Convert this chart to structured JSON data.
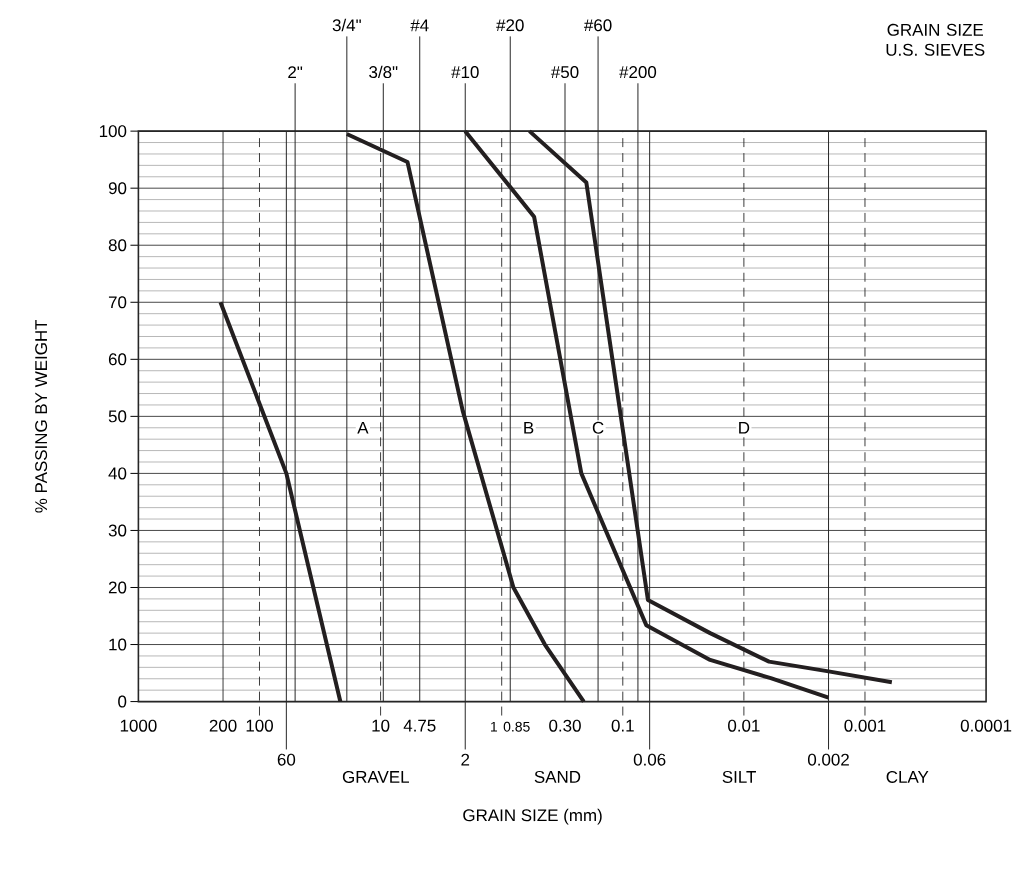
{
  "chart_data": {
    "type": "line",
    "xlabel": "GRAIN SIZE (mm)",
    "ylabel": "% PASSING BY WEIGHT",
    "log": "x",
    "xlim": [
      1000,
      0.0001
    ],
    "ylim": [
      0,
      100
    ],
    "xticks": [
      1000,
      200,
      100,
      10,
      4.75,
      1,
      0.85,
      {
        "value": 0.3,
        "label": "0.30"
      },
      0.1,
      0.01,
      0.001,
      0.0001
    ],
    "yticks": [
      0,
      {
        "value": 2,
        "label": null
      },
      {
        "value": 4,
        "label": null
      },
      {
        "value": 6,
        "label": null
      },
      {
        "value": 8,
        "label": null
      },
      10,
      {
        "value": 12,
        "label": null
      },
      {
        "value": 14,
        "label": null
      },
      {
        "value": 16,
        "label": null
      },
      {
        "value": 18,
        "label": null
      },
      20,
      {
        "value": 22,
        "label": null
      },
      {
        "value": 24,
        "label": null
      },
      {
        "value": 26,
        "label": null
      },
      {
        "value": 28,
        "label": null
      },
      30,
      {
        "value": 32,
        "label": null
      },
      {
        "value": 34,
        "label": null
      },
      {
        "value": 36,
        "label": null
      },
      {
        "value": 38,
        "label": null
      },
      40,
      {
        "value": 42,
        "label": null
      },
      {
        "value": 44,
        "label": null
      },
      {
        "value": 46,
        "label": null
      },
      {
        "value": 48,
        "label": null
      },
      50,
      {
        "value": 52,
        "label": null
      },
      {
        "value": 54,
        "label": null
      },
      {
        "value": 56,
        "label": null
      },
      {
        "value": 58,
        "label": null
      },
      60,
      {
        "value": 62,
        "label": null
      },
      {
        "value": 64,
        "label": null
      },
      {
        "value": 66,
        "label": null
      },
      {
        "value": 68,
        "label": null
      },
      70,
      {
        "value": 72,
        "label": null
      },
      {
        "value": 74,
        "label": null
      },
      {
        "value": 76,
        "label": null
      },
      {
        "value": 78,
        "label": null
      },
      80,
      {
        "value": 82,
        "label": null
      },
      {
        "value": 84,
        "label": null
      },
      {
        "value": 86,
        "label": null
      },
      {
        "value": 88,
        "label": null
      },
      90,
      {
        "value": 92,
        "label": null
      },
      {
        "value": 94,
        "label": null
      },
      {
        "value": 96,
        "label": null
      },
      {
        "value": 98,
        "label": null
      },
      100
    ],
    "grid": true,
    "series": [
      {
        "color": "#231f20",
        "x": [
          210,
          60,
          21.5
        ],
        "values": [
          70,
          40,
          0
        ]
      },
      {
        "color": "#231f20",
        "x": [
          19,
          6,
          2.1,
          0.8,
          0.44,
          0.21
        ],
        "values": [
          99.5,
          94.6,
          51,
          20,
          10,
          0
        ]
      },
      {
        "color": "#231f20",
        "x": [
          2,
          0.54,
          0.22,
          0.064,
          0.019,
          0.006,
          0.002
        ],
        "values": [
          100,
          85,
          40,
          13.4,
          7.3,
          4.1,
          0.7
        ]
      },
      {
        "color": "#231f20",
        "x": [
          0.59,
          0.2,
          0.062,
          0.019,
          0.0062,
          0.002,
          0.0006
        ],
        "values": [
          100,
          91,
          17.8,
          12,
          7,
          5.3,
          3.4
        ]
      }
    ],
    "ref_lines": [
      {
        "axis": "x",
        "value": 60,
        "label": "60"
      },
      {
        "axis": "x",
        "value": 2,
        "label": "2"
      },
      {
        "axis": "x",
        "value": 0.06,
        "label": "0.06"
      },
      {
        "axis": "x",
        "value": 0.002,
        "label": "0.002"
      },
      {
        "axis": "x",
        "value": 50.8
      },
      {
        "axis": "x",
        "value": 19
      },
      {
        "axis": "x",
        "value": 9.5
      },
      {
        "axis": "x",
        "value": 4.75
      },
      {
        "axis": "x",
        "value": 0.85
      },
      {
        "axis": "x",
        "value": 0.3
      },
      {
        "axis": "x",
        "value": 0.16
      },
      {
        "axis": "x",
        "value": 0.075
      }
    ],
    "annotations": [
      {
        "text": "A",
        "x": 14,
        "y": 48
      },
      {
        "text": "B",
        "x": 0.6,
        "y": 48
      },
      {
        "text": "C",
        "x": 0.16,
        "y": 48
      },
      {
        "text": "D",
        "x": 0.01,
        "y": 48
      },
      {
        "text": "2\"",
        "x": 50.8,
        "y": 100
      },
      {
        "text": "3/4\"",
        "x": 19,
        "y": 100
      },
      {
        "text": "3/8\"",
        "x": 9.5,
        "y": 100
      },
      {
        "text": "#4",
        "x": 4.75,
        "y": 100
      },
      {
        "text": "#10",
        "x": 2,
        "y": 100
      },
      {
        "text": "#20",
        "x": 0.85,
        "y": 100
      },
      {
        "text": "#50",
        "x": 0.3,
        "y": 100
      },
      {
        "text": "#60",
        "x": 0.16,
        "y": 100
      },
      {
        "text": "#200",
        "x": 0.075,
        "y": 100
      },
      "GRAVEL",
      "SAND",
      "SILT",
      "CLAY",
      "GRAIN SIZE U.S. SIEVES"
    ]
  }
}
